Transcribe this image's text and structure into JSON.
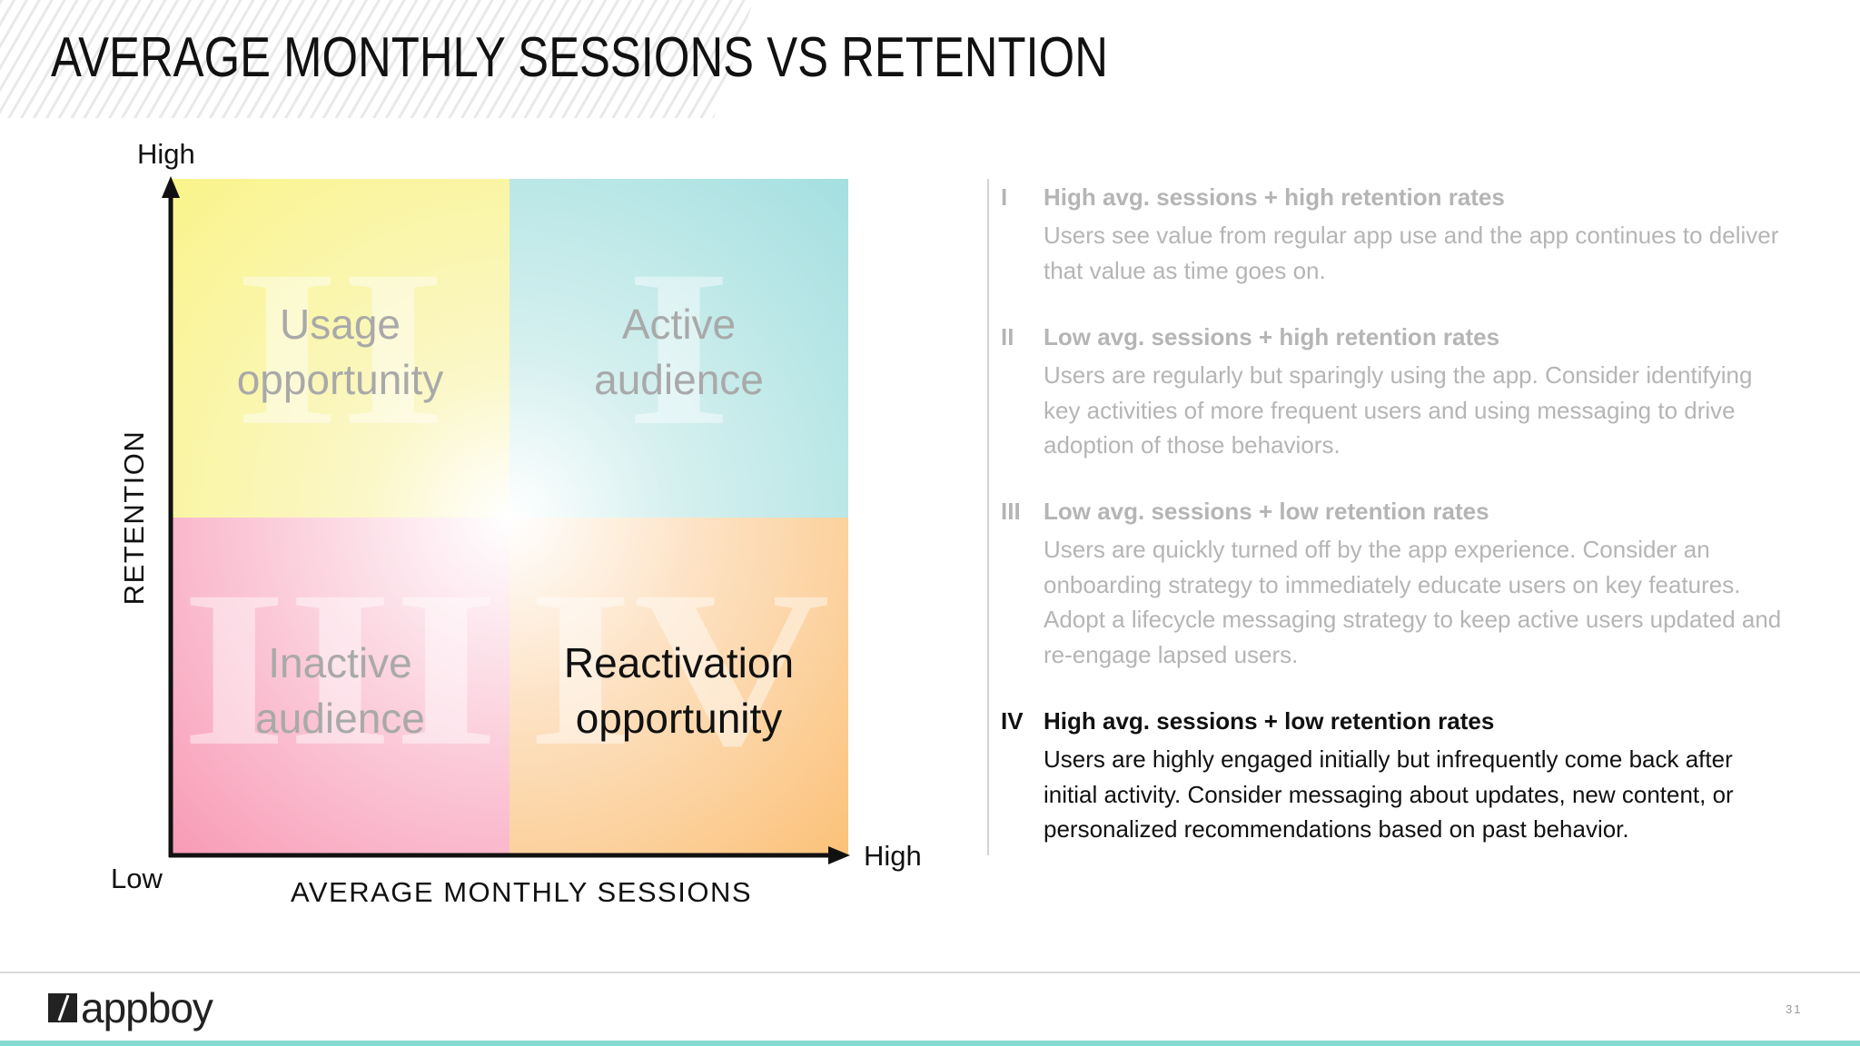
{
  "slide": {
    "title": "AVERAGE MONTHLY SESSIONS VS RETENTION",
    "page_number": "31"
  },
  "matrix": {
    "y_axis": {
      "title": "RETENTION",
      "high": "High",
      "low": "Low"
    },
    "x_axis": {
      "title": "AVERAGE MONTHLY SESSIONS",
      "high": "High"
    },
    "quadrants": [
      {
        "numeral": "II",
        "label_line1": "Usage",
        "label_line2": "opportunity",
        "color": "#f9f48a"
      },
      {
        "numeral": "I",
        "label_line1": "Active",
        "label_line2": "audience",
        "color": "#a4dfe0"
      },
      {
        "numeral": "III",
        "label_line1": "Inactive",
        "label_line2": "audience",
        "color": "#f89ab6"
      },
      {
        "numeral": "IV",
        "label_line1": "Reactivation",
        "label_line2": "opportunity",
        "color": "#fbc178"
      }
    ]
  },
  "descriptions": [
    {
      "roman": "I",
      "heading": "High avg. sessions + high retention rates",
      "body": "Users see value from regular app use and the app continues to deliver that value as time goes on."
    },
    {
      "roman": "II",
      "heading": "Low avg. sessions + high retention rates",
      "body": "Users are regularly but sparingly using the app. Consider identifying key activities of more frequent users and using messaging to drive adoption of those behaviors."
    },
    {
      "roman": "III",
      "heading": "Low avg. sessions + low retention rates",
      "body": "Users are quickly turned off by the app experience. Consider an onboarding strategy to immediately educate users on key features. Adopt a lifecycle messaging strategy to keep active users updated and re-engage lapsed users."
    },
    {
      "roman": "IV",
      "heading": "High avg. sessions + low retention rates",
      "body": "Users are highly engaged initially but infrequently come back after initial activity. Consider messaging about updates, new content, or personalized recommendations based on past behavior."
    }
  ],
  "footer": {
    "logo_text": "appboy",
    "accent_color": "#86d9cf"
  }
}
